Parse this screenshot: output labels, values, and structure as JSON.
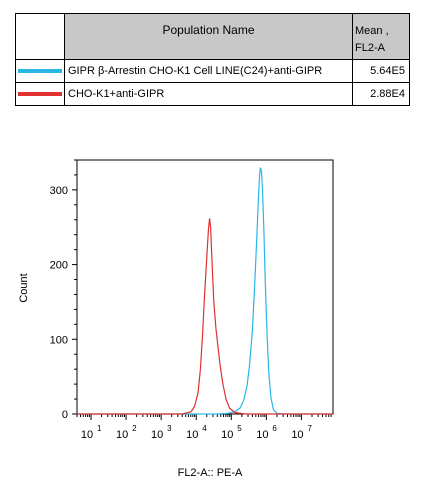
{
  "legend": {
    "header_name": "Population Name",
    "header_mean_line1": "Mean ,",
    "header_mean_line2": "FL2-A",
    "rows": [
      {
        "name": "GIPR β-Arrestin CHO-K1 Cell LINE(C24)+anti-GIPR",
        "value": "5.64E5",
        "color": "#29b6e6"
      },
      {
        "name": "CHO-K1+anti-GIPR",
        "value": "2.88E4",
        "color": "#e03030"
      }
    ]
  },
  "chart_data": {
    "type": "line",
    "title": "",
    "xlabel": "FL2-A:: PE-A",
    "ylabel": "Count",
    "xscale": "log",
    "xlim": [
      0.6,
      7.9
    ],
    "ylim": [
      0,
      340
    ],
    "y_ticks": [
      0,
      100,
      200,
      300
    ],
    "x_tick_labels": [
      {
        "exp": 1,
        "base": "10",
        "sup": "1"
      },
      {
        "exp": 2,
        "base": "10",
        "sup": "2"
      },
      {
        "exp": 3,
        "base": "10",
        "sup": "3"
      },
      {
        "exp": 4,
        "base": "10",
        "sup": "4"
      },
      {
        "exp": 5,
        "base": "10",
        "sup": "5"
      },
      {
        "exp": 6,
        "base": "10",
        "sup": "6"
      },
      {
        "exp": 7,
        "base": "10",
        "sup": "7"
      }
    ],
    "series": [
      {
        "name": "GIPR β-Arrestin CHO-K1 Cell LINE(C24)+anti-GIPR",
        "color": "#29b6e6",
        "points": [
          [
            4.6,
            0
          ],
          [
            4.9,
            1
          ],
          [
            5.1,
            3
          ],
          [
            5.25,
            8
          ],
          [
            5.35,
            18
          ],
          [
            5.45,
            38
          ],
          [
            5.52,
            65
          ],
          [
            5.6,
            110
          ],
          [
            5.66,
            165
          ],
          [
            5.72,
            230
          ],
          [
            5.77,
            285
          ],
          [
            5.8,
            315
          ],
          [
            5.83,
            330
          ],
          [
            5.86,
            325
          ],
          [
            5.89,
            300
          ],
          [
            5.93,
            245
          ],
          [
            5.97,
            175
          ],
          [
            6.02,
            105
          ],
          [
            6.07,
            55
          ],
          [
            6.13,
            22
          ],
          [
            6.2,
            6
          ],
          [
            6.3,
            1
          ],
          [
            6.5,
            0
          ]
        ]
      },
      {
        "name": "CHO-K1+anti-GIPR",
        "color": "#e03030",
        "points": [
          [
            3.6,
            0
          ],
          [
            3.85,
            3
          ],
          [
            3.95,
            10
          ],
          [
            4.05,
            28
          ],
          [
            4.12,
            60
          ],
          [
            4.18,
            105
          ],
          [
            4.24,
            160
          ],
          [
            4.3,
            210
          ],
          [
            4.35,
            248
          ],
          [
            4.38,
            262
          ],
          [
            4.41,
            250
          ],
          [
            4.45,
            205
          ],
          [
            4.5,
            150
          ],
          [
            4.56,
            115
          ],
          [
            4.62,
            90
          ],
          [
            4.68,
            65
          ],
          [
            4.76,
            40
          ],
          [
            4.85,
            20
          ],
          [
            4.95,
            8
          ],
          [
            5.1,
            2
          ],
          [
            5.4,
            0
          ]
        ]
      }
    ]
  }
}
